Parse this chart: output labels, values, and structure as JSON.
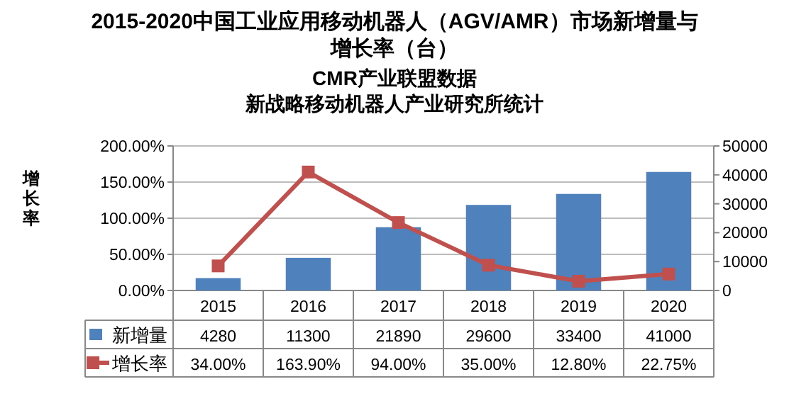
{
  "chart_data": {
    "type": "bar",
    "title": "2015-2020中国工业应用移动机器人（AGV/AMR）市场新增量与增长率（台）",
    "subtitle": "CMR产业联盟数据",
    "annotations": [
      "新战略移动机器人产业研究所统计"
    ],
    "ylabel": "增长率",
    "legend": "bottom",
    "categories": [
      "2015",
      "2016",
      "2017",
      "2018",
      "2019",
      "2020"
    ],
    "series": [
      {
        "name": "新增量",
        "axis": "y2",
        "color": "#4f81bd",
        "values": [
          4280,
          11300,
          21890,
          29600,
          33400,
          41000
        ],
        "value_labels": [
          "4280",
          "11300",
          "21890",
          "29600",
          "33400",
          "41000"
        ]
      },
      {
        "name": "增长率",
        "type": "line",
        "color": "#c0504d",
        "marker": "square",
        "values": [
          34.0,
          163.9,
          94.0,
          35.0,
          12.8,
          22.75
        ],
        "value_labels": [
          "34.00%",
          "163.90%",
          "94.00%",
          "35.00%",
          "12.80%",
          "22.75%"
        ]
      }
    ],
    "ylim": [
      0,
      200
    ],
    "yticks": [
      {
        "value": 0,
        "label": "0.00%"
      },
      {
        "value": 50,
        "label": "50.00%"
      },
      {
        "value": 100,
        "label": "100.00%"
      },
      {
        "value": 150,
        "label": "150.00%"
      },
      {
        "value": 200,
        "label": "200.00%"
      }
    ],
    "y2lim": [
      0,
      50000
    ],
    "y2ticks": [
      0,
      10000,
      20000,
      30000,
      40000,
      50000
    ],
    "grid": "y"
  }
}
